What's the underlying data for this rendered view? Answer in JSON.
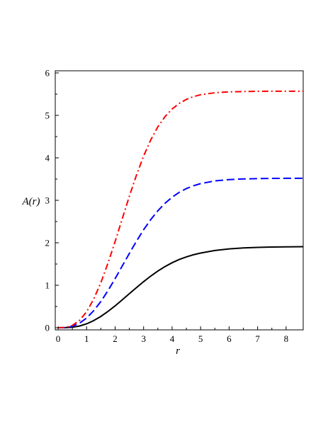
{
  "chart_data": {
    "type": "line",
    "xlabel": "r",
    "ylabel": "A(r)",
    "xlim": [
      -0.1,
      8.6
    ],
    "ylim": [
      -0.05,
      6.05
    ],
    "xticks": [
      "0",
      "1",
      "2",
      "3",
      "4",
      "5",
      "6",
      "7",
      "8"
    ],
    "yticks": [
      "0",
      "1",
      "2",
      "3",
      "4",
      "5",
      "6"
    ],
    "grid": false,
    "legend": "none",
    "series": [
      {
        "color": "#000000",
        "style": "solid",
        "x": [
          0,
          0.25,
          0.5,
          0.75,
          1.0,
          1.25,
          1.5,
          1.75,
          2.0,
          2.25,
          2.5,
          2.75,
          3.0,
          3.25,
          3.5,
          3.75,
          4.0,
          4.25,
          4.5,
          4.75,
          5.0,
          5.5,
          6.0,
          6.5,
          7.0,
          7.5,
          8.0,
          8.6
        ],
        "y": [
          0,
          0.0016,
          0.0124,
          0.0406,
          0.0918,
          0.1677,
          0.2662,
          0.3838,
          0.5156,
          0.6568,
          0.8018,
          0.9464,
          1.0858,
          1.2164,
          1.335,
          1.44,
          1.53,
          1.606,
          1.668,
          1.718,
          1.758,
          1.818,
          1.856,
          1.878,
          1.892,
          1.9,
          1.905,
          1.908
        ]
      },
      {
        "color": "#0000ff",
        "style": "dashed",
        "x": [
          0,
          0.25,
          0.5,
          0.75,
          1.0,
          1.25,
          1.5,
          1.75,
          2.0,
          2.25,
          2.5,
          2.75,
          3.0,
          3.25,
          3.5,
          3.75,
          4.0,
          4.25,
          4.5,
          4.75,
          5.0,
          5.5,
          6.0,
          6.5,
          7.0,
          7.5,
          8.0,
          8.6
        ],
        "y": [
          0,
          0.0045,
          0.034,
          0.106,
          0.228,
          0.401,
          0.618,
          0.874,
          1.156,
          1.452,
          1.75,
          2.038,
          2.306,
          2.546,
          2.754,
          2.93,
          3.074,
          3.188,
          3.277,
          3.344,
          3.394,
          3.456,
          3.488,
          3.504,
          3.512,
          3.516,
          3.518,
          3.519
        ]
      },
      {
        "color": "#ff0000",
        "style": "dashdot",
        "x": [
          0,
          0.25,
          0.5,
          0.75,
          1.0,
          1.25,
          1.5,
          1.75,
          2.0,
          2.25,
          2.5,
          2.75,
          3.0,
          3.25,
          3.5,
          3.75,
          4.0,
          4.25,
          4.5,
          4.75,
          5.0,
          5.5,
          6.0,
          6.5,
          7.0,
          7.5,
          8.0,
          8.6
        ],
        "y": [
          0,
          0.007,
          0.054,
          0.172,
          0.377,
          0.676,
          1.062,
          1.52,
          2.03,
          2.564,
          3.096,
          3.596,
          4.042,
          4.422,
          4.73,
          4.97,
          5.15,
          5.282,
          5.376,
          5.442,
          5.486,
          5.534,
          5.554,
          5.562,
          5.566,
          5.568,
          5.569,
          5.57
        ]
      }
    ]
  }
}
